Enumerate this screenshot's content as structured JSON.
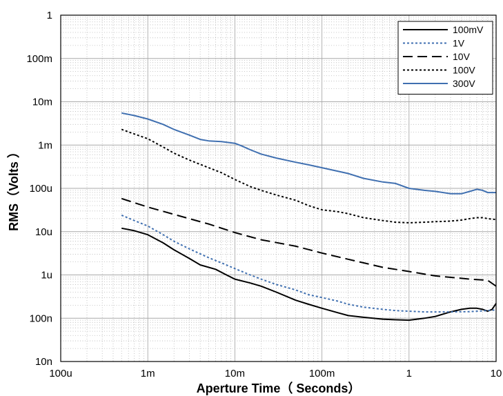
{
  "chart_data": {
    "type": "line",
    "xlabel": "Aperture Time（ Seconds）",
    "ylabel": "RMS（Volts ）",
    "xscale": "log",
    "yscale": "log",
    "xlim": [
      0.0001,
      10
    ],
    "ylim": [
      1e-08,
      1
    ],
    "grid": true,
    "legend_position": "top-right",
    "x_ticks": [
      {
        "value": 0.0001,
        "label": "100u"
      },
      {
        "value": 0.001,
        "label": "1m"
      },
      {
        "value": 0.01,
        "label": "10m"
      },
      {
        "value": 0.1,
        "label": "100m"
      },
      {
        "value": 1,
        "label": "1"
      },
      {
        "value": 10,
        "label": "10"
      }
    ],
    "y_ticks": [
      {
        "value": 1,
        "label": "1"
      },
      {
        "value": 0.1,
        "label": "100m"
      },
      {
        "value": 0.01,
        "label": "10m"
      },
      {
        "value": 0.001,
        "label": "1m"
      },
      {
        "value": 0.0001,
        "label": "100u"
      },
      {
        "value": 1e-05,
        "label": "10u"
      },
      {
        "value": 1e-06,
        "label": "1u"
      },
      {
        "value": 1e-07,
        "label": "100n"
      },
      {
        "value": 1e-08,
        "label": "10n"
      }
    ],
    "series": [
      {
        "name": "100mV",
        "color": "#000000",
        "dash": "solid",
        "x": [
          0.0005,
          0.0007,
          0.001,
          0.0015,
          0.002,
          0.003,
          0.004,
          0.006,
          0.008,
          0.01,
          0.015,
          0.02,
          0.03,
          0.05,
          0.07,
          0.1,
          0.15,
          0.2,
          0.3,
          0.5,
          0.7,
          1,
          1.5,
          2,
          3,
          4,
          5,
          6,
          7,
          8,
          9,
          10
        ],
        "y": [
          1.2e-05,
          1.05e-05,
          8.5e-06,
          5.5e-06,
          3.8e-06,
          2.4e-06,
          1.7e-06,
          1.35e-06,
          1e-06,
          8e-07,
          6.5e-07,
          5.5e-07,
          4e-07,
          2.6e-07,
          2.1e-07,
          1.7e-07,
          1.35e-07,
          1.15e-07,
          1.05e-07,
          9.5e-08,
          9.2e-08,
          9e-08,
          1e-07,
          1.1e-07,
          1.4e-07,
          1.6e-07,
          1.7e-07,
          1.7e-07,
          1.6e-07,
          1.45e-07,
          1.6e-07,
          2.2e-07
        ]
      },
      {
        "name": "1V",
        "color": "#3f6fb0",
        "dash": "dotted",
        "x": [
          0.0005,
          0.0007,
          0.001,
          0.0015,
          0.002,
          0.003,
          0.005,
          0.007,
          0.01,
          0.015,
          0.02,
          0.03,
          0.05,
          0.07,
          0.1,
          0.15,
          0.2,
          0.3,
          0.5,
          0.7,
          1,
          1.5,
          2,
          3,
          5,
          7,
          10
        ],
        "y": [
          2.4e-05,
          1.8e-05,
          1.35e-05,
          8.5e-06,
          6e-06,
          4e-06,
          2.5e-06,
          1.9e-06,
          1.4e-06,
          1e-06,
          8e-07,
          6e-07,
          4.5e-07,
          3.5e-07,
          3e-07,
          2.5e-07,
          2.1e-07,
          1.8e-07,
          1.6e-07,
          1.5e-07,
          1.45e-07,
          1.4e-07,
          1.4e-07,
          1.4e-07,
          1.42e-07,
          1.48e-07,
          1.55e-07
        ]
      },
      {
        "name": "10V",
        "color": "#000000",
        "dash": "dashed",
        "x": [
          0.0005,
          0.001,
          0.002,
          0.005,
          0.01,
          0.02,
          0.05,
          0.1,
          0.2,
          0.5,
          1,
          2,
          5,
          8,
          10
        ],
        "y": [
          5.8e-05,
          3.7e-05,
          2.5e-05,
          1.5e-05,
          9.5e-06,
          6.5e-06,
          4.6e-06,
          3.2e-06,
          2.3e-06,
          1.5e-06,
          1.2e-06,
          9.5e-07,
          8e-07,
          7.5e-07,
          5.5e-07
        ]
      },
      {
        "name": "100V",
        "color": "#000000",
        "dash": "dotted",
        "x": [
          0.0005,
          0.0007,
          0.001,
          0.0015,
          0.002,
          0.003,
          0.005,
          0.007,
          0.01,
          0.015,
          0.02,
          0.03,
          0.05,
          0.07,
          0.1,
          0.15,
          0.2,
          0.3,
          0.5,
          0.7,
          1,
          1.5,
          2,
          3,
          4,
          5,
          6,
          7,
          8,
          10
        ],
        "y": [
          0.0023,
          0.0018,
          0.0014,
          0.0009,
          0.00065,
          0.00045,
          0.0003,
          0.00023,
          0.00016,
          0.00011,
          9e-05,
          7e-05,
          5.3e-05,
          4e-05,
          3.2e-05,
          2.9e-05,
          2.6e-05,
          2.1e-05,
          1.8e-05,
          1.65e-05,
          1.6e-05,
          1.65e-05,
          1.7e-05,
          1.75e-05,
          1.85e-05,
          2e-05,
          2.1e-05,
          2.1e-05,
          2e-05,
          1.9e-05
        ]
      },
      {
        "name": "300V",
        "color": "#3f6fb0",
        "dash": "solid",
        "x": [
          0.0005,
          0.0007,
          0.001,
          0.0015,
          0.002,
          0.003,
          0.004,
          0.005,
          0.007,
          0.01,
          0.012,
          0.015,
          0.02,
          0.03,
          0.05,
          0.07,
          0.1,
          0.15,
          0.2,
          0.3,
          0.5,
          0.7,
          1,
          1.5,
          2,
          3,
          4,
          5,
          6,
          7,
          8,
          10
        ],
        "y": [
          0.0055,
          0.0048,
          0.004,
          0.003,
          0.0023,
          0.0017,
          0.00135,
          0.00125,
          0.0012,
          0.0011,
          0.00095,
          0.00078,
          0.00062,
          0.0005,
          0.0004,
          0.00035,
          0.0003,
          0.00025,
          0.00022,
          0.00017,
          0.00014,
          0.00013,
          0.0001,
          9e-05,
          8.5e-05,
          7.5e-05,
          7.5e-05,
          8.5e-05,
          9.5e-05,
          9e-05,
          8e-05,
          8e-05
        ]
      }
    ]
  }
}
